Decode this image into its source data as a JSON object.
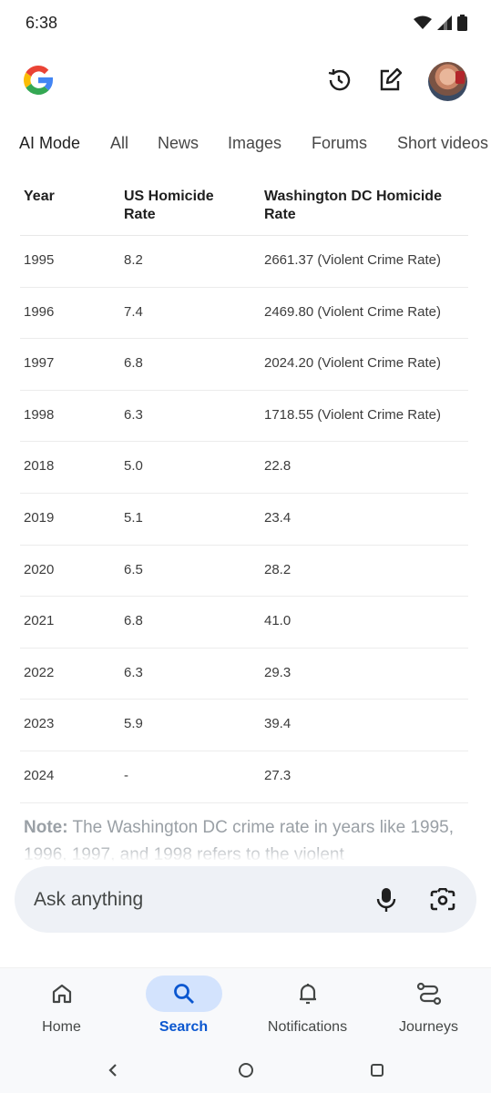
{
  "status": {
    "time": "6:38"
  },
  "tabs": [
    "AI Mode",
    "All",
    "News",
    "Images",
    "Forums",
    "Short videos"
  ],
  "table": {
    "headers": [
      "Year",
      "US Homicide Rate",
      "Washington DC Homicide Rate"
    ],
    "rows": [
      [
        "1995",
        "8.2",
        "2661.37 (Violent Crime Rate)"
      ],
      [
        "1996",
        "7.4",
        "2469.80 (Violent Crime Rate)"
      ],
      [
        "1997",
        "6.8",
        "2024.20 (Violent Crime Rate)"
      ],
      [
        "1998",
        "6.3",
        "1718.55 (Violent Crime Rate)"
      ],
      [
        "2018",
        "5.0",
        "22.8"
      ],
      [
        "2019",
        "5.1",
        "23.4"
      ],
      [
        "2020",
        "6.5",
        "28.2"
      ],
      [
        "2021",
        "6.8",
        "41.0"
      ],
      [
        "2022",
        "6.3",
        "29.3"
      ],
      [
        "2023",
        "5.9",
        "39.4"
      ],
      [
        "2024",
        "-",
        "27.3"
      ]
    ]
  },
  "note": {
    "label": "Note:",
    "text": " The Washington DC crime rate in years like 1995, 1996, 1997, and 1998 refers to the violent"
  },
  "ask": {
    "placeholder": "Ask anything"
  },
  "nav": {
    "home": "Home",
    "search": "Search",
    "notifications": "Notifications",
    "journeys": "Journeys"
  },
  "colors": {
    "accent": "#0b57d0",
    "accent_bg": "#d3e3fd",
    "ask_bg": "#eef1f6"
  }
}
